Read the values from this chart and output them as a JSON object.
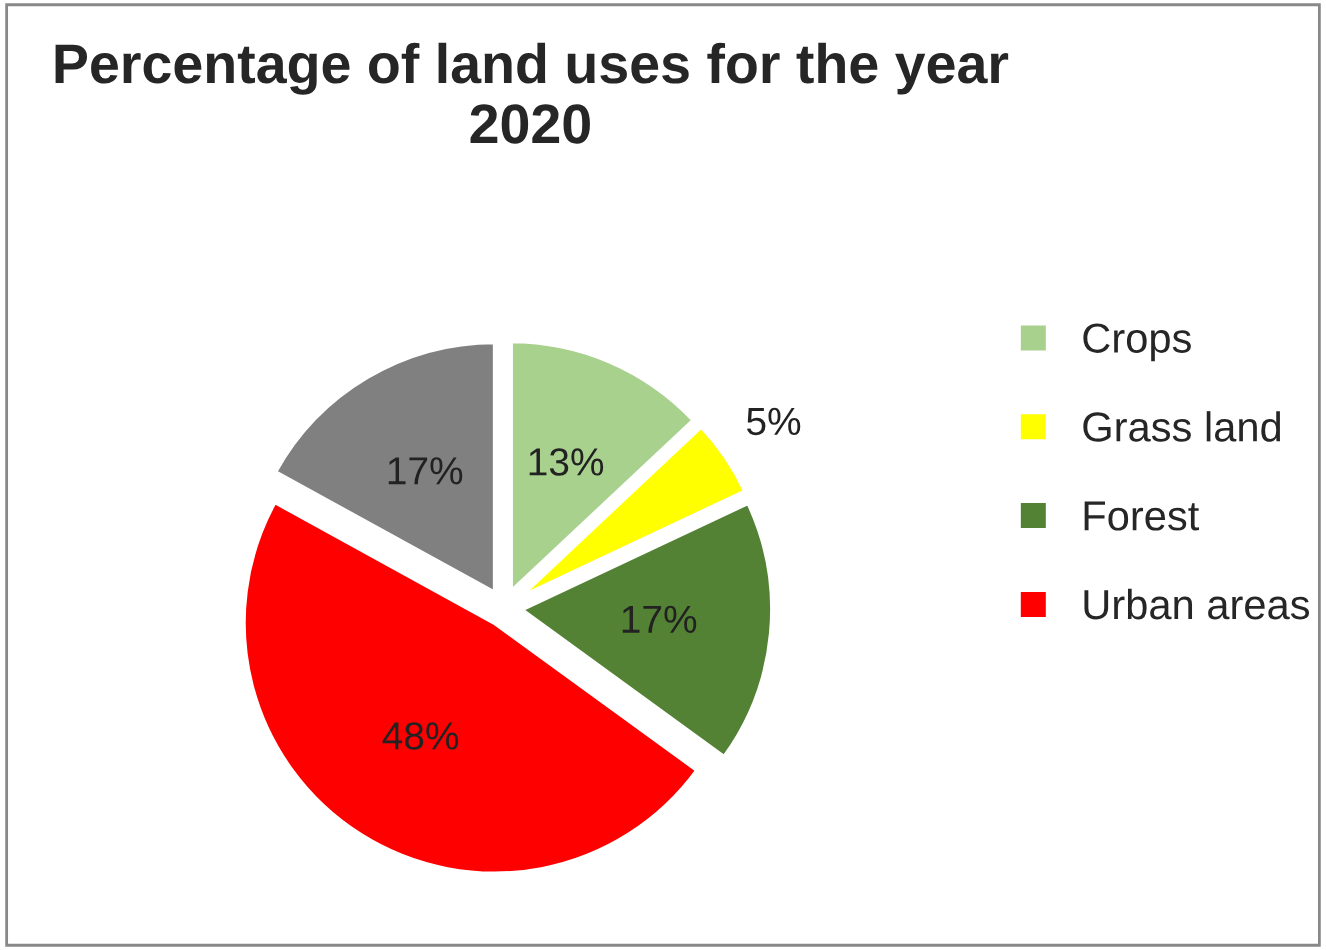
{
  "chart_data": {
    "type": "pie",
    "title": "Percentage of land uses for the year 2020",
    "categories": [
      "Crops",
      "Grass land",
      "Forest",
      "Urban areas",
      null
    ],
    "values": [
      13,
      5,
      17,
      48,
      17
    ],
    "colors": [
      "#a9d18e",
      "#ffff00",
      "#548235",
      "#ff0000",
      "#808080"
    ],
    "value_labels": [
      "13%",
      "5%",
      "17%",
      "48%",
      "17%"
    ],
    "legend": "right"
  }
}
